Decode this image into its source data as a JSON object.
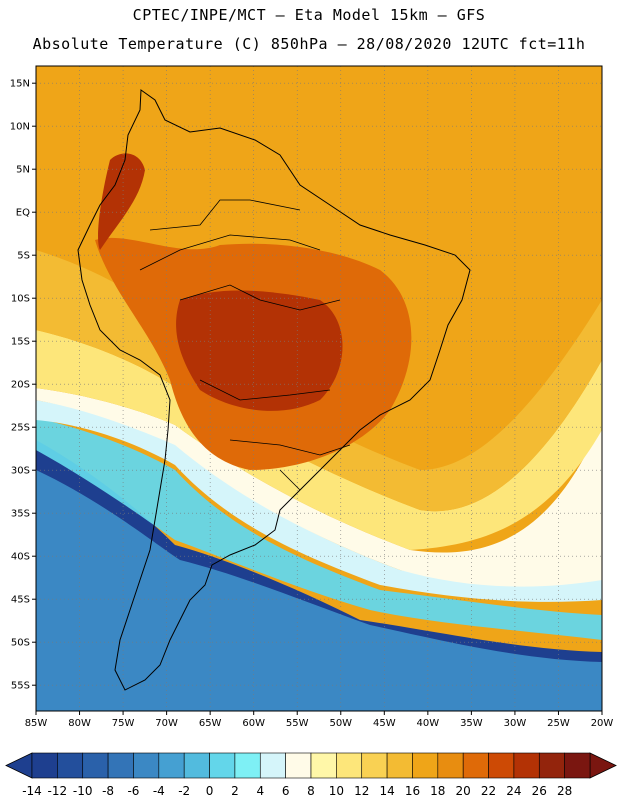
{
  "header": {
    "line1": "CPTEC/INPE/MCT –  Eta Model 15km – GFS",
    "line2": "Absolute Temperature (C) 850hPa – 28/08/2020 12UTC fct=11h"
  },
  "axes": {
    "lat_labels": [
      "15N",
      "10N",
      "5N",
      "EQ",
      "5S",
      "10S",
      "15S",
      "20S",
      "25S",
      "30S",
      "35S",
      "40S",
      "45S",
      "50S",
      "55S"
    ],
    "lon_labels": [
      "85W",
      "80W",
      "75W",
      "70W",
      "65W",
      "60W",
      "55W",
      "50W",
      "45W",
      "40W",
      "35W",
      "30W",
      "25W",
      "20W"
    ],
    "lat_range": [
      17,
      -58
    ],
    "lon_range": [
      -85,
      -20
    ],
    "grid": "dotted"
  },
  "colorbar": {
    "labels": [
      "-14",
      "-12",
      "-10",
      "-8",
      "-6",
      "-4",
      "-2",
      "0",
      "2",
      "4",
      "6",
      "8",
      "10",
      "12",
      "14",
      "16",
      "18",
      "20",
      "22",
      "24",
      "26",
      "28"
    ],
    "colors": [
      "#1e3f8f",
      "#234f9c",
      "#2a61aa",
      "#3374b7",
      "#3b88c4",
      "#45a0d2",
      "#52bbde",
      "#63d6ea",
      "#7ef0f5",
      "#d5f5fa",
      "#fffbe8",
      "#fff7a8",
      "#fde67a",
      "#f9d153",
      "#f3bb33",
      "#efa518",
      "#e88d10",
      "#df6a08",
      "#cd4a05",
      "#b33205",
      "#93240c",
      "#7a1610"
    ]
  },
  "contour_levels": {
    "very_cold": "#1e3f8f",
    "cold": "#3b88c4",
    "cool": "#52bbde",
    "cyan": "#63d6ea",
    "pale": "#d5f5fa",
    "cream": "#fffbe8",
    "light_yellow": "#fde67a",
    "yellow": "#f3bb33",
    "orange": "#efa518",
    "dark_orange": "#df6a08",
    "red_brown": "#b33205"
  }
}
